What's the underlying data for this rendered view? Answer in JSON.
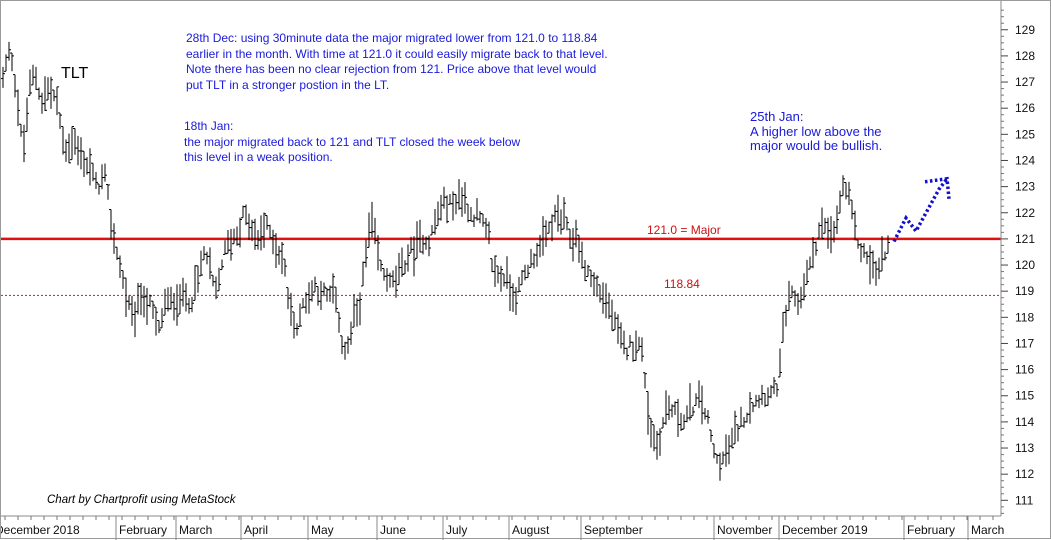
{
  "chart_data": {
    "type": "ohlc",
    "ticker": "TLT",
    "credit": "Chart by Chartprofit using MetaStock",
    "y_axis": {
      "ticks": [
        111,
        112,
        113,
        114,
        115,
        116,
        117,
        118,
        119,
        120,
        121,
        122,
        123,
        124,
        125,
        126,
        127,
        128,
        129
      ],
      "range": [
        110.4,
        130.1
      ],
      "position": "right"
    },
    "x_axis": {
      "labels": [
        "December",
        "2018",
        "February",
        "March",
        "April",
        "May",
        "June",
        "July",
        "August",
        "September",
        "November",
        "December",
        "2019",
        "February",
        "March"
      ]
    },
    "levels": [
      {
        "name": "major",
        "value": 121.0,
        "label": "121.0 = Major",
        "style": "solid",
        "color": "#e01010"
      },
      {
        "name": "minor",
        "value": 118.84,
        "label": "118.84",
        "style": "dotted",
        "color": "#e01010"
      }
    ],
    "annotations": [
      "28th Dec: using 30minute data the major migrated lower from 121.0 to 118.84\nearlier in the month. With time at 121.0 it could easily migrate back to that level.\nNote there has been no clear rejection from 121. Price above that level would\nput TLT in a stronger postion in the LT.",
      "18th Jan:\nthe major migrated back to 121 and TLT closed the week below\nthis level in a weak position.",
      "25th Jan:\nA higher low above the\nmajor would be bullish."
    ],
    "projection": [
      120.9,
      121.8,
      121.3,
      122.9,
      123.3
    ],
    "price_anchors": [
      [
        0,
        126.8
      ],
      [
        6,
        127.8
      ],
      [
        10,
        128.2
      ],
      [
        14,
        127.0
      ],
      [
        20,
        125.0
      ],
      [
        24,
        124.6
      ],
      [
        28,
        126.8
      ],
      [
        34,
        127.3
      ],
      [
        40,
        126.3
      ],
      [
        48,
        126.8
      ],
      [
        56,
        126.2
      ],
      [
        64,
        124.4
      ],
      [
        72,
        124.8
      ],
      [
        80,
        124.1
      ],
      [
        88,
        123.8
      ],
      [
        96,
        123.0
      ],
      [
        104,
        123.4
      ],
      [
        112,
        121.2
      ],
      [
        120,
        119.8
      ],
      [
        126,
        118.6
      ],
      [
        132,
        118.0
      ],
      [
        140,
        118.8
      ],
      [
        150,
        118.4
      ],
      [
        158,
        117.5
      ],
      [
        164,
        118.5
      ],
      [
        172,
        118.6
      ],
      [
        180,
        118.8
      ],
      [
        190,
        118.6
      ],
      [
        198,
        119.6
      ],
      [
        204,
        120.6
      ],
      [
        210,
        119.6
      ],
      [
        216,
        118.8
      ],
      [
        222,
        120.4
      ],
      [
        228,
        120.8
      ],
      [
        236,
        121.2
      ],
      [
        242,
        121.9
      ],
      [
        250,
        121.4
      ],
      [
        256,
        120.9
      ],
      [
        264,
        121.5
      ],
      [
        270,
        121.2
      ],
      [
        276,
        120.7
      ],
      [
        282,
        120.2
      ],
      [
        286,
        119.2
      ],
      [
        290,
        118.2
      ],
      [
        296,
        117.6
      ],
      [
        302,
        118.5
      ],
      [
        308,
        118.9
      ],
      [
        314,
        119.2
      ],
      [
        320,
        119.0
      ],
      [
        326,
        118.7
      ],
      [
        332,
        118.9
      ],
      [
        338,
        117.9
      ],
      [
        342,
        116.8
      ],
      [
        346,
        116.7
      ],
      [
        352,
        117.8
      ],
      [
        358,
        118.4
      ],
      [
        364,
        120.0
      ],
      [
        368,
        121.2
      ],
      [
        372,
        121.6
      ],
      [
        378,
        120.0
      ],
      [
        384,
        119.6
      ],
      [
        390,
        119.2
      ],
      [
        396,
        119.6
      ],
      [
        402,
        119.9
      ],
      [
        408,
        120.5
      ],
      [
        414,
        120.6
      ],
      [
        420,
        121.0
      ],
      [
        428,
        120.9
      ],
      [
        434,
        121.6
      ],
      [
        440,
        122.2
      ],
      [
        446,
        122.4
      ],
      [
        452,
        122.3
      ],
      [
        458,
        122.6
      ],
      [
        464,
        122.5
      ],
      [
        470,
        121.9
      ],
      [
        476,
        121.9
      ],
      [
        482,
        121.5
      ],
      [
        488,
        121.0
      ],
      [
        492,
        119.8
      ],
      [
        498,
        119.6
      ],
      [
        504,
        119.6
      ],
      [
        510,
        119.0
      ],
      [
        516,
        118.8
      ],
      [
        522,
        119.5
      ],
      [
        528,
        120.0
      ],
      [
        534,
        120.4
      ],
      [
        540,
        120.8
      ],
      [
        546,
        121.2
      ],
      [
        552,
        121.7
      ],
      [
        558,
        121.9
      ],
      [
        564,
        121.6
      ],
      [
        570,
        120.9
      ],
      [
        576,
        121.2
      ],
      [
        582,
        120.0
      ],
      [
        588,
        119.7
      ],
      [
        594,
        119.2
      ],
      [
        600,
        118.9
      ],
      [
        606,
        118.6
      ],
      [
        612,
        118.0
      ],
      [
        618,
        117.2
      ],
      [
        624,
        116.8
      ],
      [
        630,
        116.9
      ],
      [
        636,
        117.1
      ],
      [
        642,
        116.6
      ],
      [
        648,
        114.0
      ],
      [
        652,
        113.4
      ],
      [
        656,
        113.2
      ],
      [
        660,
        113.6
      ],
      [
        666,
        114.6
      ],
      [
        672,
        114.4
      ],
      [
        678,
        114.2
      ],
      [
        684,
        114.0
      ],
      [
        690,
        114.6
      ],
      [
        696,
        114.7
      ],
      [
        700,
        114.8
      ],
      [
        706,
        114.2
      ],
      [
        710,
        113.4
      ],
      [
        714,
        112.6
      ],
      [
        718,
        112.4
      ],
      [
        724,
        112.6
      ],
      [
        730,
        113.2
      ],
      [
        736,
        113.7
      ],
      [
        742,
        114.1
      ],
      [
        748,
        114.5
      ],
      [
        754,
        114.8
      ],
      [
        760,
        115.0
      ],
      [
        766,
        115.1
      ],
      [
        772,
        115.0
      ],
      [
        778,
        115.6
      ],
      [
        782,
        117.3
      ],
      [
        786,
        118.4
      ],
      [
        792,
        118.8
      ],
      [
        798,
        118.5
      ],
      [
        804,
        119.3
      ],
      [
        810,
        120.1
      ],
      [
        816,
        121.0
      ],
      [
        820,
        121.6
      ],
      [
        826,
        121.2
      ],
      [
        830,
        121.0
      ],
      [
        836,
        121.6
      ],
      [
        840,
        122.7
      ],
      [
        844,
        123.1
      ],
      [
        848,
        122.4
      ],
      [
        852,
        121.7
      ],
      [
        856,
        121.0
      ],
      [
        860,
        120.6
      ],
      [
        866,
        120.3
      ],
      [
        872,
        119.9
      ],
      [
        876,
        119.7
      ],
      [
        880,
        120.1
      ],
      [
        884,
        120.6
      ],
      [
        888,
        120.8
      ]
    ]
  }
}
